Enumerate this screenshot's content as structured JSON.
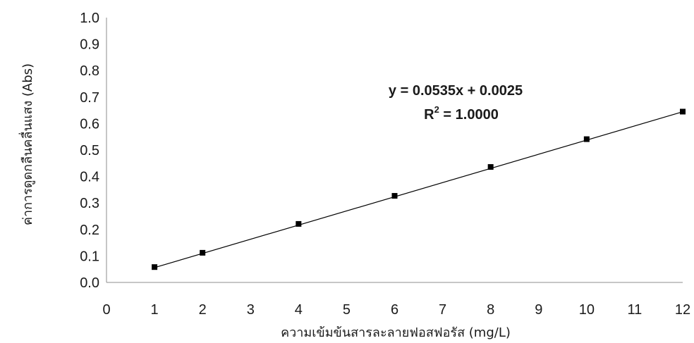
{
  "chart_data": {
    "type": "scatter",
    "title": "",
    "xlabel": "ความเข้มข้นสารละลายฟอสฟอรัส (mg/L)",
    "ylabel": "ค่าการดูดกลืนคลื่นแสง (Abs)",
    "xlim": [
      0,
      12
    ],
    "ylim": [
      0,
      1.0
    ],
    "x_ticks": [
      "0",
      "1",
      "2",
      "3",
      "4",
      "5",
      "6",
      "7",
      "8",
      "9",
      "10",
      "11",
      "12"
    ],
    "y_ticks": [
      "0.0",
      "0.1",
      "0.2",
      "0.3",
      "0.4",
      "0.5",
      "0.6",
      "0.7",
      "0.8",
      "0.9",
      "1.0"
    ],
    "grid": false,
    "legend": "none",
    "series": [
      {
        "x": [
          1,
          2,
          4,
          6,
          8,
          10,
          12
        ],
        "y": [
          0.058,
          0.112,
          0.221,
          0.327,
          0.436,
          0.541,
          0.645
        ],
        "marker": "square",
        "color": "#000000"
      }
    ],
    "trendline": {
      "type": "linear",
      "slope": 0.0535,
      "intercept": 0.0025,
      "x_range": [
        1,
        12
      ],
      "color": "#000000"
    },
    "annotations": {
      "equation": "y = 0.0535x + 0.0025",
      "r2_prefix": "R",
      "r2_exp": "2",
      "r2_value": " = 1.0000"
    }
  }
}
